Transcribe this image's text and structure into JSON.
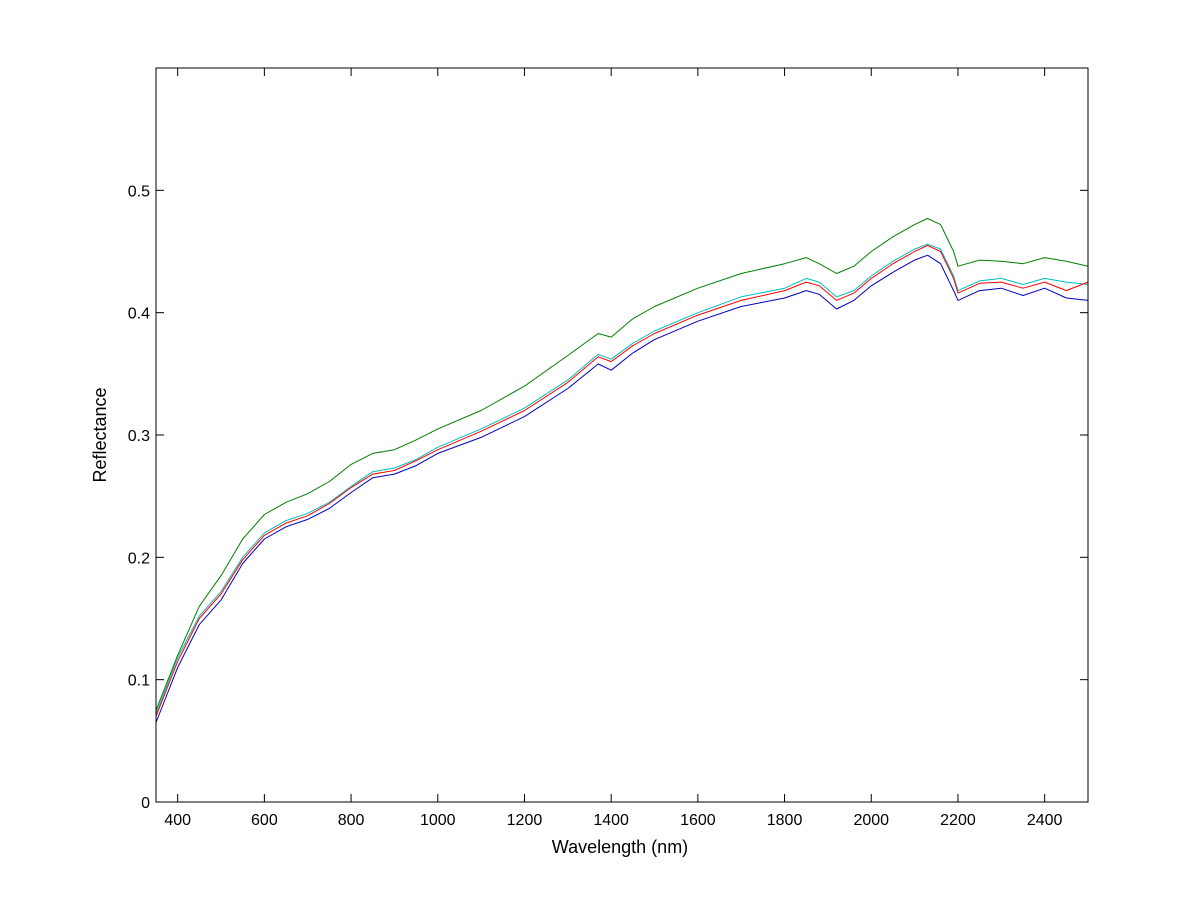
{
  "chart_data": {
    "type": "line",
    "title": "",
    "xlabel": "Wavelength (nm)",
    "ylabel": "Reflectance",
    "xlim": [
      350,
      2500
    ],
    "ylim": [
      0,
      0.6
    ],
    "xticks": [
      400,
      600,
      800,
      1000,
      1200,
      1400,
      1600,
      1800,
      2000,
      2200,
      2400
    ],
    "yticks": [
      0,
      0.1,
      0.2,
      0.3,
      0.4,
      0.5
    ],
    "ytick_labels": [
      "0",
      "0.1",
      "0.2",
      "0.3",
      "0.4",
      "0.5"
    ],
    "grid": false,
    "legend": "none",
    "x": [
      350,
      400,
      450,
      500,
      550,
      600,
      650,
      700,
      750,
      800,
      850,
      900,
      950,
      1000,
      1100,
      1200,
      1300,
      1370,
      1400,
      1450,
      1500,
      1600,
      1700,
      1800,
      1850,
      1880,
      1920,
      1960,
      2000,
      2050,
      2100,
      2130,
      2160,
      2190,
      2200,
      2250,
      2300,
      2350,
      2400,
      2450,
      2500
    ],
    "series": [
      {
        "color": "#007f00",
        "values": [
          0.075,
          0.12,
          0.16,
          0.185,
          0.215,
          0.235,
          0.245,
          0.252,
          0.262,
          0.276,
          0.285,
          0.288,
          0.296,
          0.305,
          0.32,
          0.34,
          0.365,
          0.383,
          0.38,
          0.395,
          0.405,
          0.42,
          0.432,
          0.44,
          0.445,
          0.44,
          0.432,
          0.438,
          0.45,
          0.462,
          0.472,
          0.477,
          0.472,
          0.45,
          0.438,
          0.443,
          0.442,
          0.44,
          0.445,
          0.442,
          0.438
        ]
      },
      {
        "color": "#00bfbf",
        "values": [
          0.072,
          0.118,
          0.152,
          0.172,
          0.2,
          0.22,
          0.23,
          0.236,
          0.245,
          0.258,
          0.27,
          0.273,
          0.28,
          0.29,
          0.305,
          0.322,
          0.345,
          0.366,
          0.362,
          0.375,
          0.385,
          0.4,
          0.413,
          0.42,
          0.428,
          0.425,
          0.413,
          0.418,
          0.43,
          0.442,
          0.452,
          0.456,
          0.452,
          0.43,
          0.418,
          0.426,
          0.428,
          0.423,
          0.428,
          0.425,
          0.423
        ]
      },
      {
        "color": "#ff0000",
        "values": [
          0.07,
          0.115,
          0.15,
          0.17,
          0.198,
          0.218,
          0.228,
          0.234,
          0.244,
          0.257,
          0.268,
          0.271,
          0.279,
          0.288,
          0.303,
          0.32,
          0.343,
          0.364,
          0.36,
          0.373,
          0.383,
          0.398,
          0.41,
          0.418,
          0.425,
          0.422,
          0.41,
          0.416,
          0.428,
          0.44,
          0.45,
          0.455,
          0.45,
          0.428,
          0.416,
          0.424,
          0.425,
          0.42,
          0.425,
          0.418,
          0.425
        ]
      },
      {
        "color": "#0000bf",
        "values": [
          0.065,
          0.11,
          0.145,
          0.165,
          0.195,
          0.215,
          0.225,
          0.231,
          0.24,
          0.253,
          0.265,
          0.268,
          0.275,
          0.285,
          0.298,
          0.315,
          0.338,
          0.358,
          0.353,
          0.367,
          0.378,
          0.393,
          0.405,
          0.412,
          0.418,
          0.415,
          0.403,
          0.41,
          0.422,
          0.433,
          0.443,
          0.447,
          0.44,
          0.418,
          0.41,
          0.418,
          0.42,
          0.414,
          0.42,
          0.412,
          0.41
        ]
      }
    ]
  }
}
